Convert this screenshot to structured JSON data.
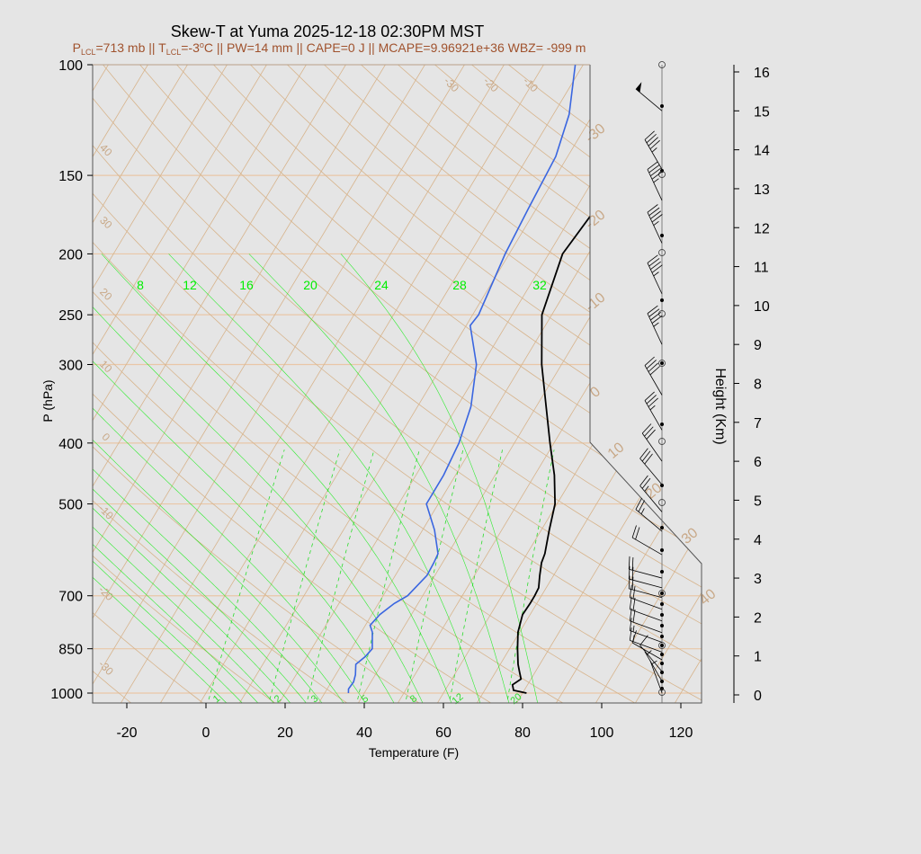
{
  "chart_data": {
    "type": "line",
    "title": "Skew-T at Yuma 2025-12-18 02:30PM MST",
    "subtitle": {
      "lcl_p": "P",
      "lcl_p_sub": "LCL",
      "lcl_p_rest": "=713 mb || T",
      "lcl_t_sub": "LCL",
      "lcl_t_rest": "=-3",
      "deg": "o",
      "tail": "C || PW=14 mm || CAPE=0 J || MCAPE=9.96921e+36 WBZ= -999 m"
    },
    "xlabel": "Temperature (F)",
    "ylabel": "P (hPa)",
    "y2label": "Height (Km)",
    "x_ticks": [
      "-20",
      "0",
      "20",
      "40",
      "60",
      "80",
      "100",
      "120"
    ],
    "y_ticks": [
      "100",
      "150",
      "200",
      "250",
      "300",
      "400",
      "500",
      "700",
      "850",
      "1000"
    ],
    "height_ticks": [
      "0",
      "1",
      "2",
      "3",
      "4",
      "5",
      "6",
      "7",
      "8",
      "9",
      "10",
      "11",
      "12",
      "13",
      "14",
      "15",
      "16"
    ],
    "xlim_f": [
      -28,
      125
    ],
    "ylim_hpa": [
      1000,
      100
    ],
    "temp_profile_f": [
      [
        1000,
        81.0
      ],
      [
        990,
        77.3
      ],
      [
        970,
        76.2
      ],
      [
        950,
        77.5
      ],
      [
        925,
        76.0
      ],
      [
        900,
        74.5
      ],
      [
        850,
        72.0
      ],
      [
        800,
        69.6
      ],
      [
        750,
        68.1
      ],
      [
        720,
        68.3
      ],
      [
        700,
        68.3
      ],
      [
        680,
        68.1
      ],
      [
        650,
        66.5
      ],
      [
        620,
        65.0
      ],
      [
        600,
        64.5
      ],
      [
        550,
        62.0
      ],
      [
        500,
        59.5
      ],
      [
        450,
        55.0
      ],
      [
        400,
        49.0
      ],
      [
        350,
        42.5
      ],
      [
        300,
        35.0
      ],
      [
        250,
        27.5
      ],
      [
        200,
        23.5
      ],
      [
        170,
        25.0
      ],
      [
        140,
        29.5
      ],
      [
        120,
        35.5
      ],
      [
        100,
        42.0
      ]
    ],
    "dewpoint_profile_f": [
      [
        1000,
        36.0
      ],
      [
        985,
        35.4
      ],
      [
        960,
        35.6
      ],
      [
        935,
        35.0
      ],
      [
        900,
        33.5
      ],
      [
        875,
        34.7
      ],
      [
        850,
        35.3
      ],
      [
        800,
        32.8
      ],
      [
        780,
        31.2
      ],
      [
        750,
        32.0
      ],
      [
        720,
        34.0
      ],
      [
        700,
        36.2
      ],
      [
        650,
        38.0
      ],
      [
        620,
        37.8
      ],
      [
        600,
        37.5
      ],
      [
        550,
        33.0
      ],
      [
        500,
        27.0
      ],
      [
        450,
        27.0
      ],
      [
        400,
        26.0
      ],
      [
        350,
        23.5
      ],
      [
        300,
        18.5
      ],
      [
        260,
        11.0
      ],
      [
        250,
        11.5
      ],
      [
        200,
        9.0
      ],
      [
        170,
        8.0
      ],
      [
        140,
        7.0
      ],
      [
        120,
        4.0
      ],
      [
        100,
        -2.0
      ]
    ],
    "isotherm_labels_f": [
      "-30",
      "-20",
      "-10",
      "0",
      "10",
      "20",
      "30",
      "40",
      "50",
      "60",
      "70",
      "80",
      "90",
      "100",
      "110",
      "120",
      "130",
      "140",
      "150",
      "160"
    ],
    "isotherm_right_labels_f": [
      "40",
      "30",
      "20",
      "10",
      "0",
      "-10",
      "-20",
      "-30"
    ],
    "mixing_ratio_labels_gkg": [
      "1",
      "2",
      "3",
      "5",
      "8",
      "12",
      "20"
    ],
    "theta_e_labels": [
      "8",
      "12",
      "16",
      "20",
      "24",
      "28",
      "32"
    ],
    "wind_barbs": [
      {
        "height_km": 0.05,
        "speed_kt": 5,
        "dir_deg": 340
      },
      {
        "height_km": 0.35,
        "speed_kt": 5,
        "dir_deg": 330
      },
      {
        "height_km": 0.6,
        "speed_kt": 10,
        "dir_deg": 320
      },
      {
        "height_km": 0.9,
        "speed_kt": 10,
        "dir_deg": 300
      },
      {
        "height_km": 1.1,
        "speed_kt": 15,
        "dir_deg": 290
      },
      {
        "height_km": 1.35,
        "speed_kt": 15,
        "dir_deg": 290
      },
      {
        "height_km": 1.6,
        "speed_kt": 20,
        "dir_deg": 290
      },
      {
        "height_km": 1.9,
        "speed_kt": 20,
        "dir_deg": 290
      },
      {
        "height_km": 2.2,
        "speed_kt": 20,
        "dir_deg": 290
      },
      {
        "height_km": 2.5,
        "speed_kt": 20,
        "dir_deg": 285
      },
      {
        "height_km": 2.75,
        "speed_kt": 20,
        "dir_deg": 285
      },
      {
        "height_km": 3.0,
        "speed_kt": 20,
        "dir_deg": 285
      },
      {
        "height_km": 3.6,
        "speed_kt": 20,
        "dir_deg": 300
      },
      {
        "height_km": 4.2,
        "speed_kt": 25,
        "dir_deg": 310
      },
      {
        "height_km": 4.7,
        "speed_kt": 25,
        "dir_deg": 320
      },
      {
        "height_km": 5.4,
        "speed_kt": 30,
        "dir_deg": 320
      },
      {
        "height_km": 6.0,
        "speed_kt": 30,
        "dir_deg": 325
      },
      {
        "height_km": 6.8,
        "speed_kt": 35,
        "dir_deg": 330
      },
      {
        "height_km": 7.7,
        "speed_kt": 40,
        "dir_deg": 330
      },
      {
        "height_km": 9.0,
        "speed_kt": 45,
        "dir_deg": 335
      },
      {
        "height_km": 10.3,
        "speed_kt": 45,
        "dir_deg": 335
      },
      {
        "height_km": 11.6,
        "speed_kt": 45,
        "dir_deg": 335
      },
      {
        "height_km": 12.7,
        "speed_kt": 45,
        "dir_deg": 335
      },
      {
        "height_km": 13.5,
        "speed_kt": 45,
        "dir_deg": 330
      },
      {
        "height_km": 15.0,
        "speed_kt": 50,
        "dir_deg": 310
      }
    ],
    "colors": {
      "background": "#e5e5e5",
      "temperature": "#000000",
      "dewpoint": "#3a66e0",
      "isotherm": "#d7b48c",
      "isotherm_label": "#c8a887",
      "isobar": "#e9c7a7",
      "mixing_ratio": "#2bdc2b",
      "theta_e": "#00ee00",
      "subtitle": "#a0522d",
      "axis": "#000000"
    },
    "grid": true
  }
}
